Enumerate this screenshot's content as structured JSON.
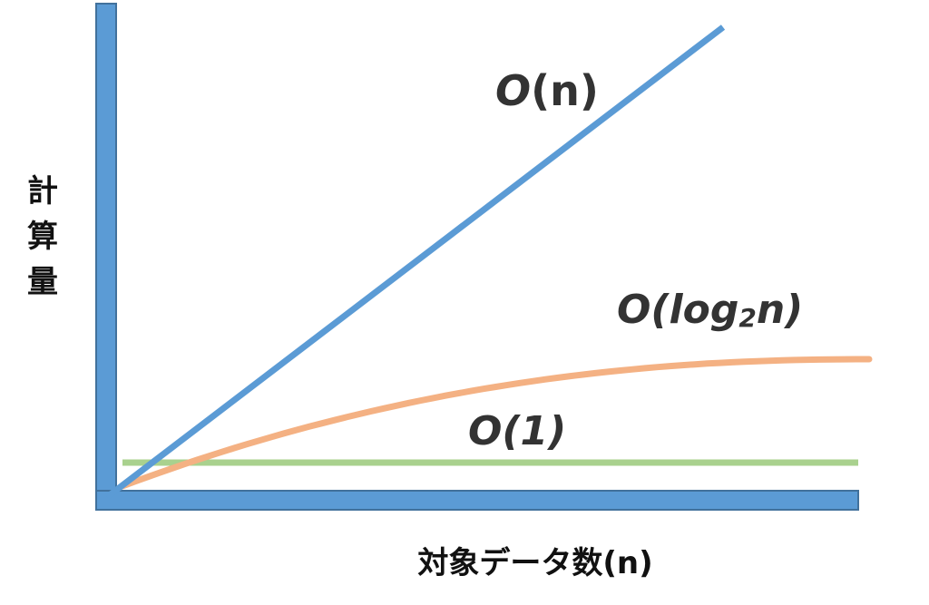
{
  "chart_data": {
    "type": "line",
    "title": "",
    "xlabel": "対象データ数(n)",
    "ylabel": "計算量",
    "grid": false,
    "legend": "none",
    "colors": {
      "axis": "#5b9bd5",
      "axis_border": "#41719c",
      "O(n)": "#5b9bd5",
      "O(log2n)": "#f4b183",
      "O(1)": "#a9d18e",
      "label_text": "#333333"
    },
    "series": [
      {
        "name": "O(n)",
        "label_parts": {
          "prefix": "O",
          "main": "(n)",
          "sub": ""
        },
        "x": [
          0,
          1
        ],
        "y": [
          0,
          1
        ]
      },
      {
        "name": "O(log2n)",
        "label_parts": {
          "prefix": "O",
          "main": "(log",
          "sub": "2",
          "suffix": "n)"
        },
        "x": [
          0,
          0.1,
          0.2,
          0.3,
          0.4,
          0.5,
          0.6,
          0.7,
          0.8,
          0.9,
          1.0
        ],
        "y": [
          0,
          0.09,
          0.15,
          0.2,
          0.235,
          0.26,
          0.28,
          0.29,
          0.295,
          0.298,
          0.3
        ]
      },
      {
        "name": "O(1)",
        "label_parts": {
          "prefix": "O",
          "main": "(1)",
          "sub": ""
        },
        "x": [
          0,
          1
        ],
        "y": [
          0.06,
          0.06
        ]
      }
    ]
  }
}
